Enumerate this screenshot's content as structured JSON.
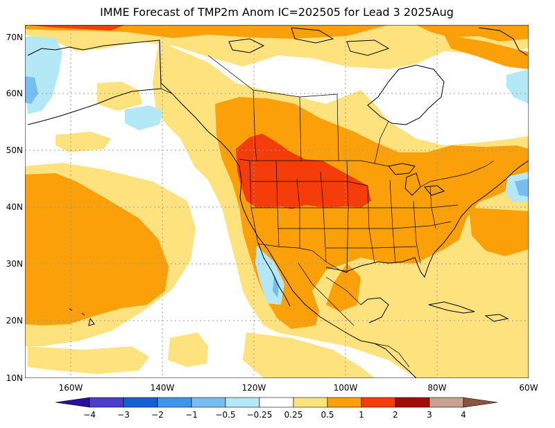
{
  "title": "IMME Forecast of TMP2m Anom IC=202505 for Lead 3 2025Aug",
  "lat_labels": [
    "70N",
    "60N",
    "50N",
    "40N",
    "30N",
    "20N",
    "10N"
  ],
  "lon_labels": [
    "160W",
    "140W",
    "120W",
    "100W",
    "80W",
    "60W"
  ],
  "colorbar": {
    "labels": [
      "−4",
      "−3",
      "−2",
      "−1",
      "−0.5",
      "−0.25",
      "0.25",
      "0.5",
      "1",
      "2",
      "3",
      "4"
    ],
    "colors": [
      "#2a0fa0",
      "#4b3fc9",
      "#1560d2",
      "#3e96ea",
      "#78bdf2",
      "#b4e8f6",
      "#ffffff",
      "#fde27e",
      "#fca00a",
      "#f53d0c",
      "#a30b0b",
      "#c8a190",
      "#8a5440"
    ]
  },
  "map_colors": {
    "ocean_neutral": "#ffffff",
    "warm_025": "#fde27e",
    "warm_05": "#fca00a",
    "warm_1": "#f53d0c",
    "cool_025": "#b4e8f6",
    "cool_05": "#78bdf2",
    "outline": "#000000",
    "grid": "#9a9a9a"
  }
}
